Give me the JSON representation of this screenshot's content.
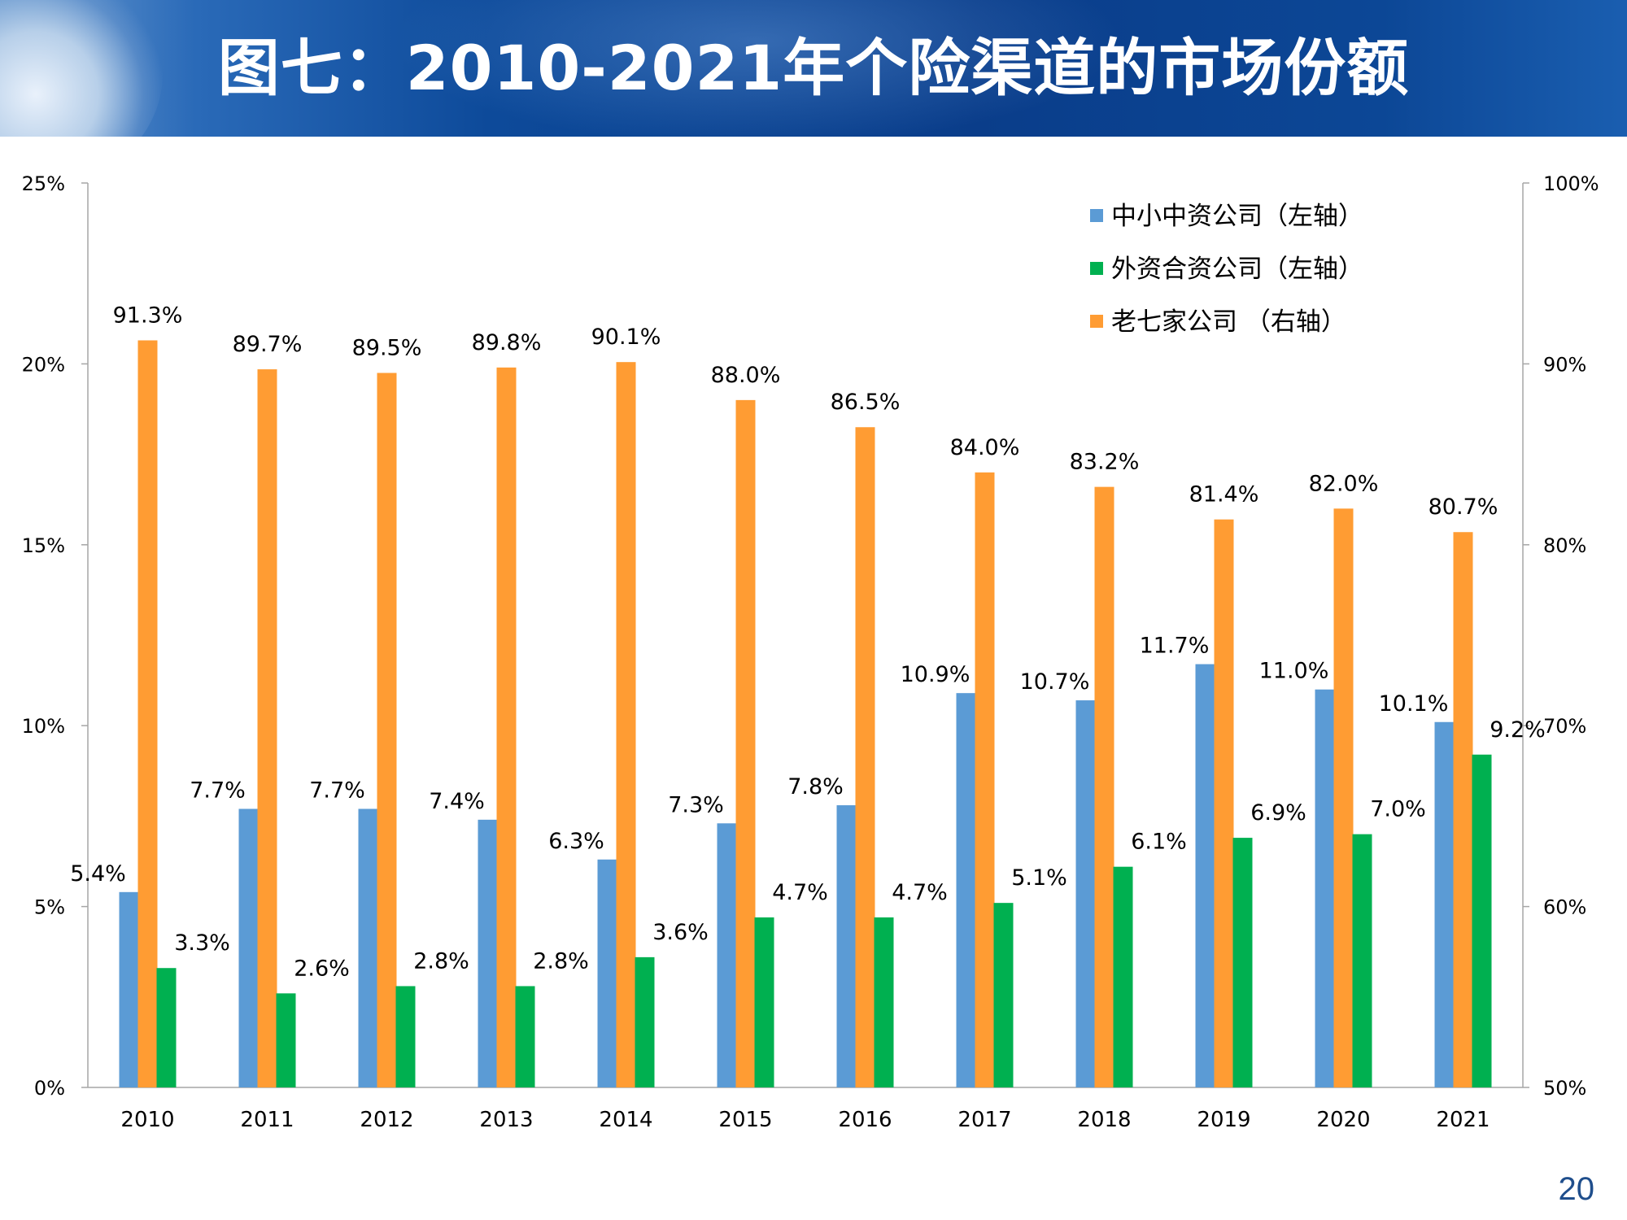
{
  "slide": {
    "title": "图七：2010-2021年个险渠道的市场份额",
    "page_number": "20"
  },
  "colors": {
    "small_medium_domestic": "#5b9bd5",
    "foreign_joint_venture": "#00b050",
    "big_seven": "#ff9c33",
    "axis": "#a6a6a6",
    "text": "#000000"
  },
  "chart_data": {
    "type": "bar",
    "title": "",
    "categories": [
      "2010",
      "2011",
      "2012",
      "2013",
      "2014",
      "2015",
      "2016",
      "2017",
      "2018",
      "2019",
      "2020",
      "2021"
    ],
    "left_axis": {
      "ylim": [
        0,
        25
      ],
      "ticks": [
        "0%",
        "5%",
        "10%",
        "15%",
        "20%",
        "25%"
      ]
    },
    "right_axis": {
      "ylim": [
        50,
        100
      ],
      "ticks": [
        "50%",
        "60%",
        "70%",
        "80%",
        "90%",
        "100%"
      ]
    },
    "legend_position": "top-right",
    "series": [
      {
        "name": "中小中资公司（左轴）",
        "axis": "left",
        "color": "#5b9bd5",
        "values": [
          5.4,
          7.7,
          7.7,
          7.4,
          6.3,
          7.3,
          7.8,
          10.9,
          10.7,
          11.7,
          11.0,
          10.1
        ],
        "labels": [
          "5.4%",
          "7.7%",
          "7.7%",
          "7.4%",
          "6.3%",
          "7.3%",
          "7.8%",
          "10.9%",
          "10.7%",
          "11.7%",
          "11.0%",
          "10.1%"
        ]
      },
      {
        "name": "老七家公司 （右轴）",
        "axis": "right",
        "color": "#ff9c33",
        "values": [
          91.3,
          89.7,
          89.5,
          89.8,
          90.1,
          88.0,
          86.5,
          84.0,
          83.2,
          81.4,
          82.0,
          80.7
        ],
        "labels": [
          "91.3%",
          "89.7%",
          "89.5%",
          "89.8%",
          "90.1%",
          "88.0%",
          "86.5%",
          "84.0%",
          "83.2%",
          "81.4%",
          "82.0%",
          "80.7%"
        ]
      },
      {
        "name": "外资合资公司（左轴）",
        "axis": "left",
        "color": "#00b050",
        "values": [
          3.3,
          2.6,
          2.8,
          2.8,
          3.6,
          4.7,
          4.7,
          5.1,
          6.1,
          6.9,
          7.0,
          9.2
        ],
        "labels": [
          "3.3%",
          "2.6%",
          "2.8%",
          "2.8%",
          "3.6%",
          "4.7%",
          "4.7%",
          "5.1%",
          "6.1%",
          "6.9%",
          "7.0%",
          "9.2%"
        ]
      }
    ],
    "legend": [
      {
        "label": "中小中资公司（左轴）",
        "color": "#5b9bd5"
      },
      {
        "label": "外资合资公司（左轴）",
        "color": "#00b050"
      },
      {
        "label": "老七家公司 （右轴）",
        "color": "#ff9c33"
      }
    ]
  }
}
